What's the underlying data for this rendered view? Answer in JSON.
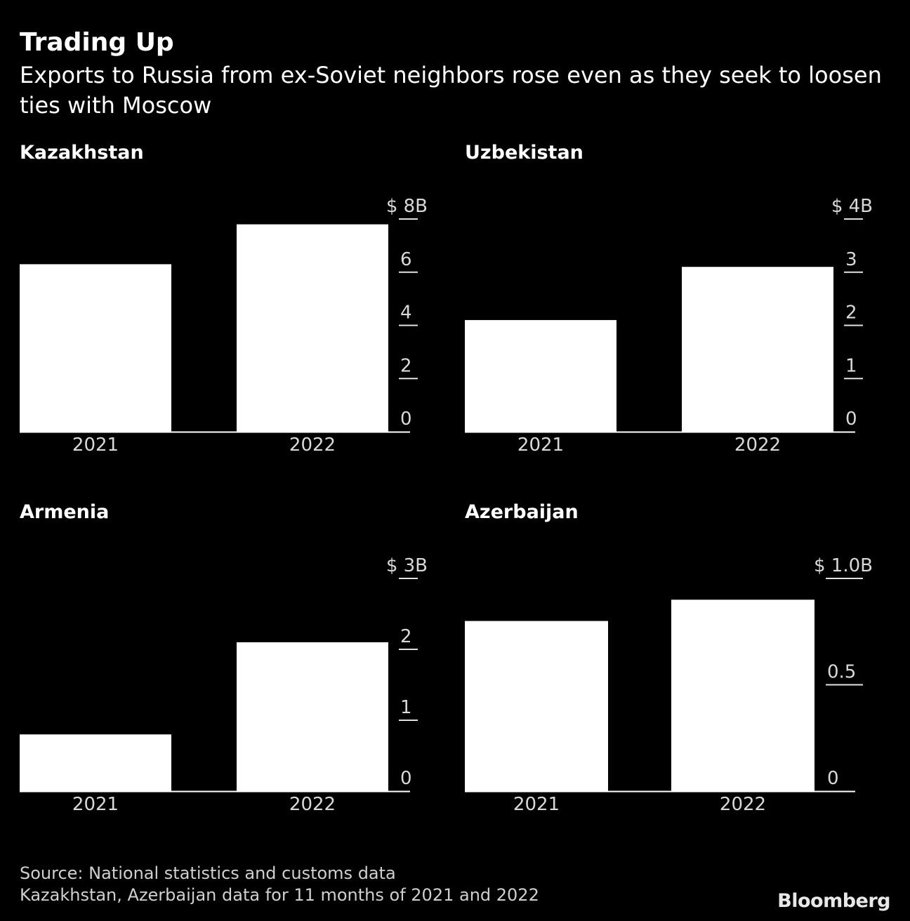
{
  "header": {
    "title": "Trading Up",
    "subtitle": "Exports to Russia from ex-Soviet neighbors rose even as they seek to loosen ties with Moscow"
  },
  "chart_data": [
    {
      "type": "bar",
      "title": "Kazakhstan",
      "categories": [
        "2021",
        "2022"
      ],
      "values": [
        6.3,
        7.8
      ],
      "ylim": [
        0,
        8
      ],
      "ticks": [
        0,
        2,
        4,
        6,
        8
      ],
      "tick_labels": [
        "0",
        "2",
        "4",
        "6",
        "$ 8B"
      ],
      "xlabel": "",
      "ylabel": "",
      "grid": false
    },
    {
      "type": "bar",
      "title": "Uzbekistan",
      "categories": [
        "2021",
        "2022"
      ],
      "values": [
        2.1,
        3.1
      ],
      "ylim": [
        0,
        4
      ],
      "ticks": [
        0,
        1,
        2,
        3,
        4
      ],
      "tick_labels": [
        "0",
        "1",
        "2",
        "3",
        "$ 4B"
      ],
      "xlabel": "",
      "ylabel": "",
      "grid": false
    },
    {
      "type": "bar",
      "title": "Armenia",
      "categories": [
        "2021",
        "2022"
      ],
      "values": [
        0.8,
        2.1
      ],
      "ylim": [
        0,
        3
      ],
      "ticks": [
        0,
        1,
        2,
        3
      ],
      "tick_labels": [
        "0",
        "1",
        "2",
        "$ 3B"
      ],
      "xlabel": "",
      "ylabel": "",
      "grid": false
    },
    {
      "type": "bar",
      "title": "Azerbaijan",
      "categories": [
        "2021",
        "2022"
      ],
      "values": [
        0.8,
        0.9
      ],
      "ylim": [
        0,
        1.0
      ],
      "ticks": [
        0,
        0.5,
        1.0
      ],
      "tick_labels": [
        "0",
        "0.5",
        "$ 1.0B"
      ],
      "xlabel": "",
      "ylabel": "",
      "grid": false
    }
  ],
  "footer": {
    "source": "Source: National statistics and customs data",
    "note": "Kazakhstan, Azerbaijan data for 11 months of 2021 and 2022",
    "brand": "Bloomberg"
  }
}
